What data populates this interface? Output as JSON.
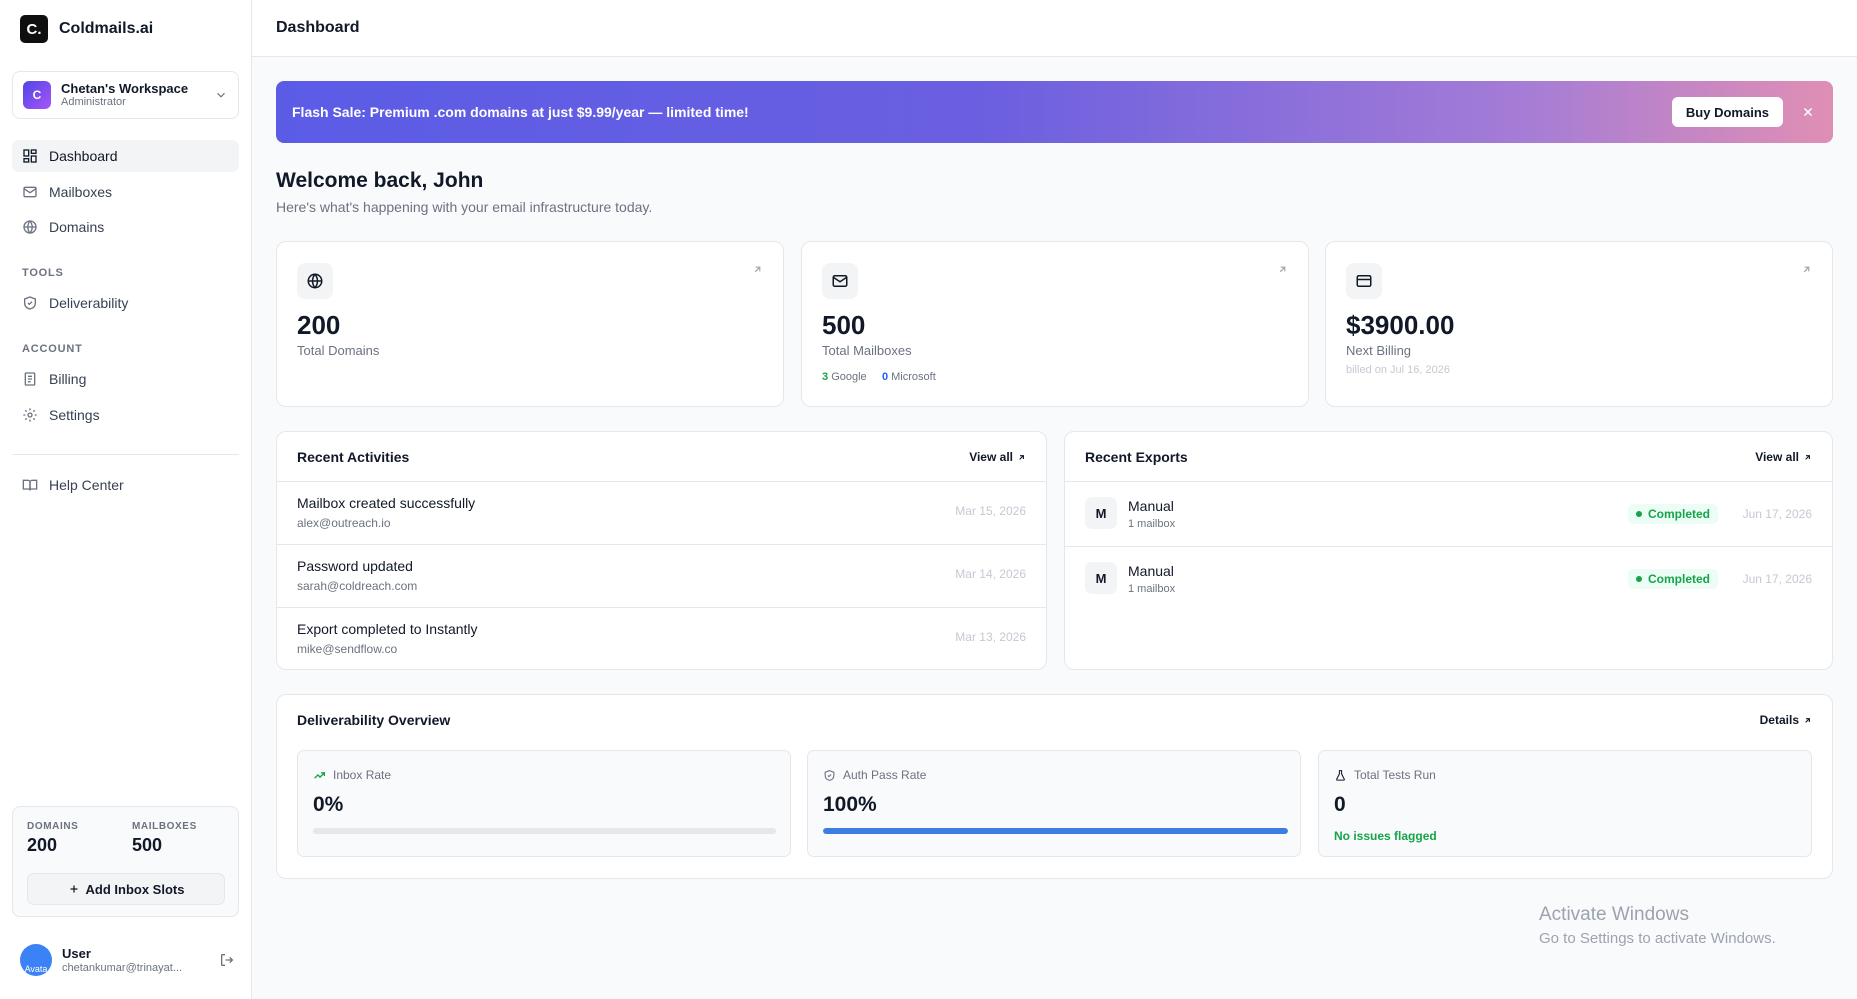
{
  "app": {
    "logo_letter": "C.",
    "name": "Coldmails.ai"
  },
  "workspace": {
    "initial": "C",
    "name": "Chetan's Workspace",
    "role": "Administrator"
  },
  "nav": {
    "dashboard": "Dashboard",
    "mailboxes": "Mailboxes",
    "domains": "Domains",
    "tools_section": "TOOLS",
    "deliverability": "Deliverability",
    "account_section": "ACCOUNT",
    "billing": "Billing",
    "settings": "Settings",
    "help": "Help Center"
  },
  "quota": {
    "domains_label": "DOMAINS",
    "domains_value": "200",
    "mailboxes_label": "MAILBOXES",
    "mailboxes_value": "500",
    "add_button": "Add Inbox Slots"
  },
  "user": {
    "avatar_alt": "Avata",
    "name": "User",
    "email": "chetankumar@trinayat..."
  },
  "header": {
    "title": "Dashboard"
  },
  "banner": {
    "text": "Flash Sale: Premium .com domains at just $9.99/year — limited time!",
    "button": "Buy Domains"
  },
  "welcome": {
    "title": "Welcome back, John",
    "subtitle": "Here's what's happening with your email infrastructure today."
  },
  "stats": {
    "domains": {
      "value": "200",
      "label": "Total Domains"
    },
    "mailboxes": {
      "value": "500",
      "label": "Total Mailboxes",
      "google_count": "3",
      "google_label": "Google",
      "microsoft_count": "0",
      "microsoft_label": "Microsoft"
    },
    "billing": {
      "value": "$3900.00",
      "label": "Next Billing",
      "note": "billed on Jul 16, 2026"
    }
  },
  "activities": {
    "title": "Recent Activities",
    "view_all": "View all",
    "items": [
      {
        "title": "Mailbox created successfully",
        "sub": "alex@outreach.io",
        "date": "Mar 15, 2026"
      },
      {
        "title": "Password updated",
        "sub": "sarah@coldreach.com",
        "date": "Mar 14, 2026"
      },
      {
        "title": "Export completed to Instantly",
        "sub": "mike@sendflow.co",
        "date": "Mar 13, 2026"
      }
    ]
  },
  "exports": {
    "title": "Recent Exports",
    "view_all": "View all",
    "items": [
      {
        "initial": "M",
        "title": "Manual",
        "sub": "1 mailbox",
        "status": "Completed",
        "date": "Jun 17, 2026"
      },
      {
        "initial": "M",
        "title": "Manual",
        "sub": "1 mailbox",
        "status": "Completed",
        "date": "Jun 17, 2026"
      }
    ]
  },
  "deliverability": {
    "title": "Deliverability Overview",
    "details": "Details",
    "inbox": {
      "label": "Inbox Rate",
      "value": "0%",
      "progress": 0
    },
    "auth": {
      "label": "Auth Pass Rate",
      "value": "100%",
      "progress": 1.0
    },
    "tests": {
      "label": "Total Tests Run",
      "value": "0",
      "note": "No issues flagged"
    }
  },
  "watermark": {
    "title": "Activate Windows",
    "subtitle": "Go to Settings to activate Windows."
  },
  "colors": {
    "accent": "#3b7de0",
    "success": "#16a34a",
    "microsoft": "#2563eb"
  }
}
